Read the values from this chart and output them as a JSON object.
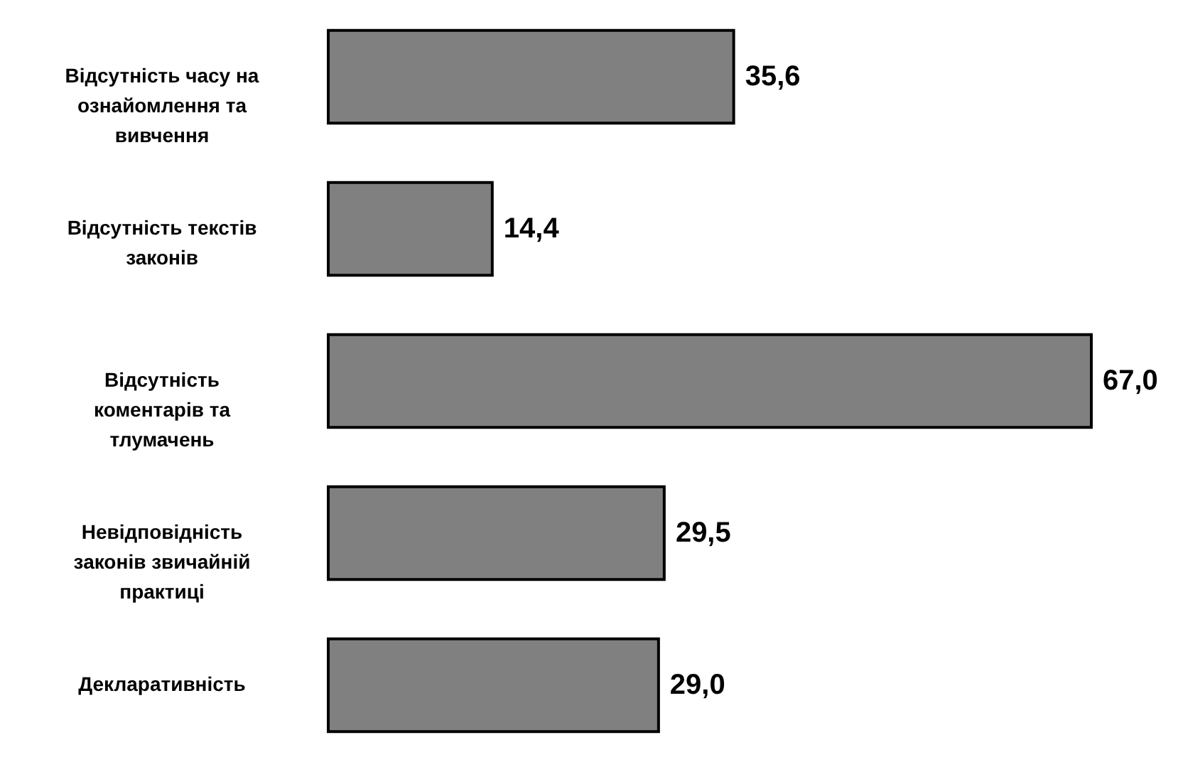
{
  "chart_data": {
    "type": "bar",
    "orientation": "horizontal",
    "categories": [
      "Відсутність часу на ознайомлення та вивчення",
      "Відсутність текстів законів",
      "Відсутність коментарів та тлумачень",
      "Невідповідність законів звичайній практиці",
      "Декларативність"
    ],
    "values": [
      35.6,
      14.4,
      67.0,
      29.5,
      29.0
    ],
    "value_labels": [
      "35,6",
      "14,4",
      "67,0",
      "29,5",
      "29,0"
    ],
    "color": "#808080"
  }
}
